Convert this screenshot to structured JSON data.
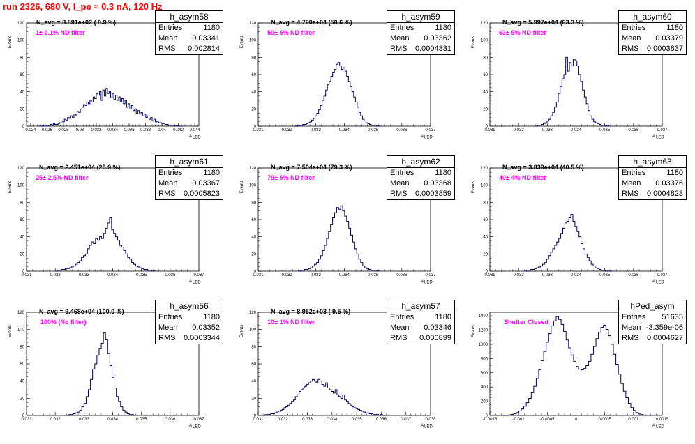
{
  "header": {
    "title": "run 2326,   680 V, I_pe ≈ 0.3 nA, 120 Hz"
  },
  "axis_labels": {
    "y": "Events",
    "x": "A",
    "x_sub": "LED"
  },
  "chart_data": [
    {
      "type": "bar",
      "name": "h_asym58",
      "title": "h_asym58",
      "stats": {
        "entries": "1180",
        "mean": "0.03341",
        "rms": "0.002814"
      },
      "n_avg": "N_avg = 8.891e+02 ( 0.9 %)",
      "filter": "1± 0.1% ND filter",
      "xlim": [
        0.0235,
        0.0445
      ],
      "ylim": [
        0,
        120
      ],
      "xticks": [
        0.024,
        0.026,
        0.028,
        0.03,
        0.032,
        0.034,
        0.036,
        0.038,
        0.04,
        0.042,
        0.044
      ],
      "xtick_labels": [
        "0.024",
        "0.026",
        "0.028",
        "0.03",
        "0.032",
        "0.034",
        "0.036",
        "0.038",
        "0.04",
        "0.042",
        "0.044"
      ],
      "yticks": [
        0,
        20,
        40,
        60,
        80,
        100,
        120
      ],
      "hist": {
        "x0": 0.025,
        "x1": 0.0425,
        "values": [
          0,
          0,
          1,
          0,
          1,
          0,
          1,
          2,
          1,
          3,
          2,
          2,
          3,
          4,
          6,
          5,
          8,
          7,
          10,
          9,
          12,
          10,
          14,
          13,
          17,
          16,
          20,
          22,
          25,
          24,
          28,
          26,
          30,
          28,
          34,
          32,
          38,
          36,
          40,
          30,
          42,
          35,
          44,
          38,
          40,
          33,
          38,
          31,
          36,
          30,
          34,
          28,
          32,
          26,
          30,
          22,
          26,
          20,
          24,
          18,
          20,
          15,
          18,
          14,
          16,
          12,
          14,
          10,
          12,
          8,
          10,
          6,
          8,
          5,
          6,
          4,
          4,
          3,
          3,
          2,
          2,
          1,
          1,
          1,
          1,
          0,
          1,
          0,
          0,
          0
        ]
      }
    },
    {
      "type": "bar",
      "name": "h_asym59",
      "title": "h_asym59",
      "stats": {
        "entries": "1180",
        "mean": "0.03362",
        "rms": "0.0004331"
      },
      "n_avg": "N_avg = 4.790e+04 (50.6 %)",
      "filter": "50± 5% ND filter",
      "xlim": [
        0.031,
        0.037
      ],
      "ylim": [
        0,
        120
      ],
      "xticks": [
        0.031,
        0.032,
        0.033,
        0.034,
        0.035,
        0.036,
        0.037
      ],
      "xtick_labels": [
        "0.031",
        "0.032",
        "0.033",
        "0.034",
        "0.035",
        "0.036",
        "0.037"
      ],
      "yticks": [
        0,
        20,
        40,
        60,
        80,
        100,
        120
      ],
      "hist": {
        "x0": 0.03225,
        "x1": 0.0353,
        "values": [
          0,
          1,
          0,
          1,
          1,
          2,
          2,
          3,
          4,
          5,
          7,
          9,
          12,
          15,
          19,
          24,
          30,
          35,
          42,
          48,
          52,
          58,
          62,
          66,
          72,
          74,
          70,
          66,
          68,
          64,
          58,
          52,
          46,
          40,
          34,
          28,
          22,
          16,
          12,
          8,
          6,
          4,
          3,
          2,
          1,
          1,
          0,
          1,
          0,
          0
        ]
      }
    },
    {
      "type": "bar",
      "name": "h_asym60",
      "title": "h_asym60",
      "stats": {
        "entries": "1180",
        "mean": "0.03379",
        "rms": "0.0003837"
      },
      "n_avg": "N_avg = 5.997e+04 (63.3 %)",
      "filter": "63± 5% ND filter",
      "xlim": [
        0.031,
        0.037
      ],
      "ylim": [
        0,
        120
      ],
      "xticks": [
        0.031,
        0.032,
        0.033,
        0.034,
        0.035,
        0.036,
        0.037
      ],
      "xtick_labels": [
        "0.031",
        "0.032",
        "0.033",
        "0.034",
        "0.035",
        "0.036",
        "0.037"
      ],
      "yticks": [
        0,
        20,
        40,
        60,
        80,
        100,
        120
      ],
      "hist": {
        "x0": 0.0326,
        "x1": 0.0352,
        "values": [
          0,
          1,
          1,
          2,
          3,
          4,
          6,
          8,
          12,
          16,
          22,
          28,
          38,
          46,
          55,
          60,
          80,
          64,
          74,
          70,
          78,
          76,
          70,
          60,
          52,
          42,
          34,
          26,
          18,
          12,
          8,
          5,
          4,
          3,
          2,
          1,
          1,
          0,
          1,
          0
        ]
      }
    },
    {
      "type": "bar",
      "name": "h_asym61",
      "title": "h_asym61",
      "stats": {
        "entries": "1180",
        "mean": "0.03367",
        "rms": "0.0005823"
      },
      "n_avg": "N_avg = 2.451e+04 (25.9 %)",
      "filter": "25± 2.5% ND filter",
      "xlim": [
        0.031,
        0.037
      ],
      "ylim": [
        0,
        120
      ],
      "xticks": [
        0.031,
        0.032,
        0.033,
        0.034,
        0.035,
        0.036,
        0.037
      ],
      "xtick_labels": [
        "0.031",
        "0.032",
        "0.033",
        "0.034",
        "0.035",
        "0.036",
        "0.037"
      ],
      "yticks": [
        0,
        20,
        40,
        60,
        80,
        100,
        120
      ],
      "hist": {
        "x0": 0.032,
        "x1": 0.0355,
        "values": [
          0,
          1,
          1,
          2,
          2,
          3,
          3,
          4,
          5,
          6,
          8,
          10,
          12,
          16,
          18,
          20,
          26,
          30,
          34,
          32,
          38,
          36,
          40,
          38,
          44,
          50,
          56,
          62,
          48,
          44,
          40,
          36,
          30,
          28,
          24,
          20,
          16,
          14,
          10,
          8,
          6,
          5,
          4,
          3,
          2,
          2,
          1,
          1,
          0,
          1
        ]
      }
    },
    {
      "type": "bar",
      "name": "h_asym62",
      "title": "h_asym62",
      "stats": {
        "entries": "1180",
        "mean": "0.03368",
        "rms": "0.0003859"
      },
      "n_avg": "N_avg = 7.504e+04 (79.3 %)",
      "filter": "79± 5% ND filter",
      "xlim": [
        0.031,
        0.037
      ],
      "ylim": [
        0,
        120
      ],
      "xticks": [
        0.031,
        0.032,
        0.033,
        0.034,
        0.035,
        0.036,
        0.037
      ],
      "xtick_labels": [
        "0.031",
        "0.032",
        "0.033",
        "0.034",
        "0.035",
        "0.036",
        "0.037"
      ],
      "yticks": [
        0,
        20,
        40,
        60,
        80,
        100,
        120
      ],
      "hist": {
        "x0": 0.0324,
        "x1": 0.0352,
        "values": [
          0,
          1,
          1,
          2,
          2,
          3,
          4,
          6,
          8,
          10,
          14,
          18,
          24,
          30,
          38,
          46,
          54,
          62,
          68,
          74,
          72,
          76,
          70,
          64,
          58,
          50,
          42,
          34,
          26,
          20,
          14,
          10,
          6,
          4,
          3,
          2,
          1,
          1,
          0,
          1
        ]
      }
    },
    {
      "type": "bar",
      "name": "h_asym63",
      "title": "h_asym63",
      "stats": {
        "entries": "1180",
        "mean": "0.03376",
        "rms": "0.0004823"
      },
      "n_avg": "N_avg = 3.839e+04 (40.5 %)",
      "filter": "40± 4% ND filter",
      "xlim": [
        0.031,
        0.037
      ],
      "ylim": [
        0,
        120
      ],
      "xticks": [
        0.031,
        0.032,
        0.033,
        0.034,
        0.035,
        0.036,
        0.037
      ],
      "xtick_labels": [
        "0.031",
        "0.032",
        "0.033",
        "0.034",
        "0.035",
        "0.036",
        "0.037"
      ],
      "yticks": [
        0,
        20,
        40,
        60,
        80,
        100,
        120
      ],
      "hist": {
        "x0": 0.0322,
        "x1": 0.0353,
        "values": [
          0,
          1,
          1,
          2,
          2,
          3,
          4,
          5,
          6,
          8,
          10,
          14,
          18,
          22,
          26,
          30,
          34,
          38,
          44,
          50,
          56,
          58,
          62,
          66,
          58,
          52,
          46,
          40,
          32,
          26,
          20,
          16,
          12,
          8,
          6,
          4,
          3,
          2,
          1,
          1,
          0,
          1,
          0,
          0
        ]
      }
    },
    {
      "type": "bar",
      "name": "h_asym56",
      "title": "h_asym56",
      "stats": {
        "entries": "1180",
        "mean": "0.03352",
        "rms": "0.0003344"
      },
      "n_avg": "N_avg = 9.468e+04 (100.0 %)",
      "filter": "100% (No filter)",
      "xlim": [
        0.031,
        0.037
      ],
      "ylim": [
        0,
        120
      ],
      "xticks": [
        0.031,
        0.032,
        0.033,
        0.034,
        0.035,
        0.036,
        0.037
      ],
      "xtick_labels": [
        "0.031",
        "0.032",
        "0.033",
        "0.034",
        "0.035",
        "0.036",
        "0.037"
      ],
      "yticks": [
        0,
        20,
        40,
        60,
        80,
        100,
        120
      ],
      "hist": {
        "x0": 0.0324,
        "x1": 0.0348,
        "values": [
          0,
          1,
          1,
          2,
          3,
          4,
          6,
          10,
          14,
          22,
          30,
          42,
          54,
          60,
          70,
          78,
          84,
          96,
          88,
          72,
          58,
          44,
          32,
          22,
          16,
          10,
          6,
          4,
          2,
          1,
          1,
          0
        ]
      }
    },
    {
      "type": "bar",
      "name": "h_asym57",
      "title": "h_asym57",
      "stats": {
        "entries": "1180",
        "mean": "0.03346",
        "rms": "0.000899"
      },
      "n_avg": "N_avg = 8.952e+03 ( 9.5 %)",
      "filter": "10± 1% ND filter",
      "xlim": [
        0.031,
        0.038
      ],
      "ylim": [
        0,
        120
      ],
      "xticks": [
        0.031,
        0.032,
        0.033,
        0.034,
        0.035,
        0.036,
        0.037,
        0.038
      ],
      "xtick_labels": [
        "0.031",
        "0.032",
        "0.033",
        "0.034",
        "0.035",
        "0.036",
        "0.037",
        "0.038"
      ],
      "yticks": [
        0,
        20,
        40,
        60,
        80,
        100,
        120
      ],
      "hist": {
        "x0": 0.0312,
        "x1": 0.0362,
        "values": [
          0,
          1,
          1,
          1,
          2,
          2,
          3,
          4,
          5,
          6,
          7,
          9,
          10,
          12,
          14,
          16,
          18,
          22,
          24,
          28,
          30,
          32,
          34,
          36,
          38,
          40,
          42,
          40,
          38,
          42,
          40,
          36,
          34,
          38,
          32,
          30,
          28,
          26,
          30,
          24,
          22,
          20,
          24,
          18,
          16,
          14,
          12,
          10,
          9,
          8,
          7,
          6,
          5,
          4,
          3,
          3,
          2,
          2,
          1,
          1,
          1,
          0,
          1,
          0,
          0
        ]
      }
    },
    {
      "type": "bar",
      "name": "hPed_asym",
      "title": "hPed_asym",
      "stats": {
        "entries": "51635",
        "mean": "-3.359e-06",
        "rms": "0.0004627"
      },
      "n_avg": "",
      "filter": "Shutter Closed",
      "xlim": [
        -0.0015,
        0.0015
      ],
      "ylim": [
        0,
        1450
      ],
      "xticks": [
        -0.0015,
        -0.001,
        -0.0005,
        0,
        0.0005,
        0.001,
        0.0015
      ],
      "xtick_labels": [
        "-0.0015",
        "-0.001",
        "-0.0005",
        "0",
        "0.0005",
        "0.001",
        "0.0015"
      ],
      "yticks": [
        0,
        200,
        400,
        600,
        800,
        1000,
        1200,
        1400
      ],
      "hist": {
        "x0": -0.0013,
        "x1": 0.0013,
        "values": [
          0,
          2,
          4,
          8,
          14,
          24,
          40,
          62,
          92,
          130,
          180,
          240,
          320,
          410,
          520,
          640,
          770,
          900,
          1030,
          1150,
          1260,
          1330,
          1390,
          1350,
          1280,
          1180,
          1060,
          950,
          850,
          760,
          690,
          650,
          640,
          660,
          700,
          760,
          860,
          970,
          1080,
          1170,
          1240,
          1270,
          1210,
          1120,
          1000,
          860,
          720,
          580,
          450,
          340,
          250,
          170,
          110,
          70,
          40,
          22,
          12,
          6,
          3,
          1
        ]
      }
    }
  ]
}
